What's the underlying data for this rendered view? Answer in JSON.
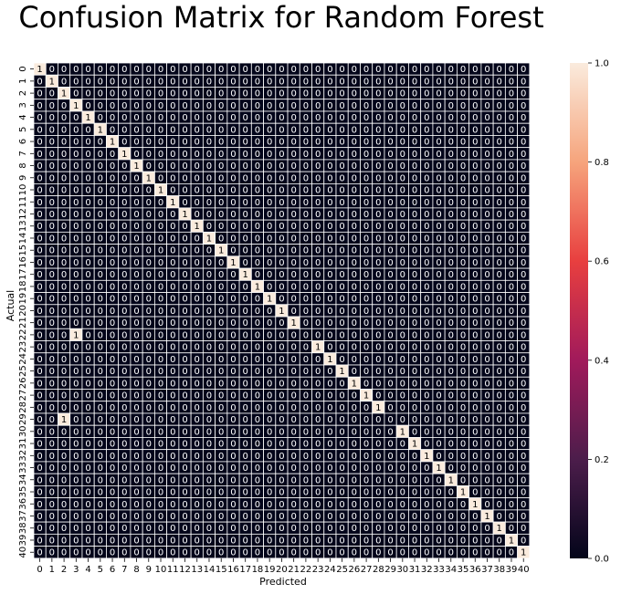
{
  "chart_data": {
    "type": "heatmap",
    "title": "Confusion Matrix for Random Forest",
    "xlabel": "Predicted",
    "ylabel": "Actual",
    "x_categories": [
      "0",
      "1",
      "2",
      "3",
      "4",
      "5",
      "6",
      "7",
      "8",
      "9",
      "10",
      "11",
      "12",
      "13",
      "14",
      "15",
      "16",
      "17",
      "18",
      "19",
      "20",
      "21",
      "22",
      "23",
      "24",
      "25",
      "26",
      "27",
      "28",
      "29",
      "30",
      "31",
      "32",
      "33",
      "34",
      "35",
      "36",
      "37",
      "38",
      "39",
      "40"
    ],
    "y_categories": [
      "0",
      "1",
      "2",
      "3",
      "4",
      "5",
      "6",
      "7",
      "8",
      "9",
      "10",
      "11",
      "12",
      "13",
      "14",
      "15",
      "16",
      "17",
      "18",
      "19",
      "20",
      "21",
      "22",
      "23",
      "24",
      "25",
      "26",
      "27",
      "28",
      "29",
      "30",
      "31",
      "32",
      "33",
      "34",
      "35",
      "36",
      "37",
      "38",
      "39",
      "40"
    ],
    "ones": [
      [
        0,
        0
      ],
      [
        1,
        1
      ],
      [
        2,
        2
      ],
      [
        3,
        3
      ],
      [
        4,
        4
      ],
      [
        5,
        5
      ],
      [
        6,
        6
      ],
      [
        7,
        7
      ],
      [
        8,
        8
      ],
      [
        9,
        9
      ],
      [
        10,
        10
      ],
      [
        11,
        11
      ],
      [
        12,
        12
      ],
      [
        13,
        13
      ],
      [
        14,
        14
      ],
      [
        15,
        15
      ],
      [
        16,
        16
      ],
      [
        17,
        17
      ],
      [
        18,
        18
      ],
      [
        19,
        19
      ],
      [
        20,
        20
      ],
      [
        21,
        21
      ],
      [
        22,
        3
      ],
      [
        23,
        23
      ],
      [
        24,
        24
      ],
      [
        25,
        25
      ],
      [
        26,
        26
      ],
      [
        27,
        27
      ],
      [
        28,
        28
      ],
      [
        29,
        2
      ],
      [
        30,
        30
      ],
      [
        31,
        31
      ],
      [
        32,
        32
      ],
      [
        33,
        33
      ],
      [
        34,
        34
      ],
      [
        35,
        35
      ],
      [
        36,
        36
      ],
      [
        37,
        37
      ],
      [
        38,
        38
      ],
      [
        39,
        39
      ],
      [
        40,
        40
      ]
    ],
    "colorbar": {
      "min": 0.0,
      "max": 1.0,
      "ticks": [
        "0.0",
        "0.2",
        "0.4",
        "0.6",
        "0.8",
        "1.0"
      ]
    },
    "colors": {
      "low": "#03051a",
      "high": "#faebdd",
      "grid": "#ffffff"
    }
  }
}
